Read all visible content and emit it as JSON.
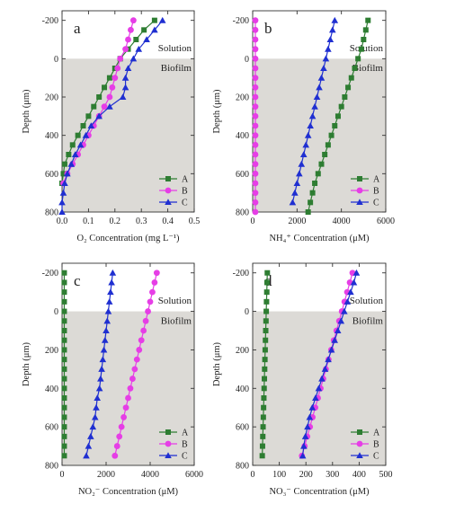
{
  "colors": {
    "A": "#2e7d32",
    "B": "#e63ee6",
    "C": "#1f2fd1",
    "biofilm_fill": "#dcdad6"
  },
  "chart_data": [
    {
      "type": "line",
      "panel": "a",
      "xlabel": "O₂ Concentration (mg L⁻¹)",
      "ylabel": "Depth (μm)",
      "xlim": [
        0,
        0.5
      ],
      "ylim": [
        -250,
        800
      ],
      "xticks": [
        0,
        0.1,
        0.2,
        0.3,
        0.4,
        0.5
      ],
      "xtick_labels": [
        "0.0",
        "0.1",
        "0.2",
        "0.3",
        "0.4",
        "0.5"
      ],
      "yticks": [
        -200,
        0,
        200,
        400,
        600,
        800
      ],
      "ytick_labels": [
        "-200",
        "0",
        "200",
        "400",
        "600",
        "800"
      ],
      "y_inverted": true,
      "solution_label": "Solution",
      "biofilm_label": "Biofilm",
      "legend": "bottom-right",
      "series": [
        {
          "name": "A",
          "marker": "square",
          "x": [
            0.35,
            0.31,
            0.28,
            0.25,
            0.22,
            0.2,
            0.18,
            0.16,
            0.14,
            0.12,
            0.1,
            0.08,
            0.06,
            0.04,
            0.025,
            0.01,
            0.005,
            0.0
          ],
          "y": [
            -200,
            -150,
            -100,
            -50,
            0,
            50,
            100,
            150,
            200,
            250,
            300,
            350,
            400,
            450,
            500,
            550,
            600,
            650
          ]
        },
        {
          "name": "B",
          "marker": "circle",
          "x": [
            0.27,
            0.26,
            0.25,
            0.24,
            0.22,
            0.21,
            0.2,
            0.19,
            0.18,
            0.16,
            0.14,
            0.12,
            0.1,
            0.08,
            0.06,
            0.04,
            0.02,
            0.005
          ],
          "y": [
            -200,
            -150,
            -100,
            -50,
            0,
            50,
            100,
            150,
            200,
            250,
            300,
            350,
            400,
            450,
            500,
            550,
            600,
            650
          ]
        },
        {
          "name": "C",
          "marker": "triangle",
          "x": [
            0.38,
            0.35,
            0.32,
            0.29,
            0.27,
            0.25,
            0.24,
            0.24,
            0.23,
            0.18,
            0.14,
            0.11,
            0.09,
            0.07,
            0.05,
            0.035,
            0.02,
            0.01,
            0.005,
            0.0,
            0.0
          ],
          "y": [
            -200,
            -150,
            -100,
            -50,
            0,
            50,
            100,
            150,
            200,
            250,
            300,
            350,
            400,
            450,
            500,
            550,
            600,
            650,
            700,
            750,
            800
          ]
        }
      ]
    },
    {
      "type": "line",
      "panel": "b",
      "xlabel": "NH₄⁺ Concentration (μM)",
      "ylabel": "Depth (μm)",
      "xlim": [
        0,
        6000
      ],
      "ylim": [
        -250,
        800
      ],
      "xticks": [
        0,
        2000,
        4000,
        6000
      ],
      "xtick_labels": [
        "0",
        "2000",
        "4000",
        "6000"
      ],
      "yticks": [
        -200,
        0,
        200,
        400,
        600,
        800
      ],
      "ytick_labels": [
        "-200",
        "0",
        "200",
        "400",
        "600",
        "800"
      ],
      "y_inverted": true,
      "solution_label": "Solution",
      "biofilm_label": "Biofilm",
      "legend": "bottom-right",
      "series": [
        {
          "name": "A",
          "marker": "square",
          "x": [
            5200,
            5100,
            5000,
            4900,
            4750,
            4600,
            4450,
            4300,
            4150,
            4000,
            3850,
            3700,
            3550,
            3400,
            3250,
            3100,
            2950,
            2800,
            2700,
            2600,
            2500
          ],
          "y": [
            -200,
            -150,
            -100,
            -50,
            0,
            50,
            100,
            150,
            200,
            250,
            300,
            350,
            400,
            450,
            500,
            550,
            600,
            650,
            700,
            750,
            800
          ]
        },
        {
          "name": "B",
          "marker": "circle",
          "x": [
            120,
            120,
            120,
            120,
            120,
            120,
            120,
            120,
            120,
            120,
            120,
            120,
            120,
            120,
            120,
            120,
            120,
            120,
            120,
            120,
            120
          ],
          "y": [
            -200,
            -150,
            -100,
            -50,
            0,
            50,
            100,
            150,
            200,
            250,
            300,
            350,
            400,
            450,
            500,
            550,
            600,
            650,
            700,
            750,
            800
          ]
        },
        {
          "name": "C",
          "marker": "triangle",
          "x": [
            3700,
            3600,
            3500,
            3400,
            3300,
            3200,
            3100,
            3000,
            2900,
            2800,
            2700,
            2600,
            2500,
            2400,
            2300,
            2200,
            2100,
            2000,
            1900,
            1800
          ],
          "y": [
            -200,
            -150,
            -100,
            -50,
            0,
            50,
            100,
            150,
            200,
            250,
            300,
            350,
            400,
            450,
            500,
            550,
            600,
            650,
            700,
            750
          ]
        }
      ]
    },
    {
      "type": "line",
      "panel": "c",
      "xlabel": "NO₂⁻ Concentration (μM)",
      "ylabel": "Depth (μm)",
      "xlim": [
        0,
        6000
      ],
      "ylim": [
        -250,
        800
      ],
      "xticks": [
        0,
        2000,
        4000,
        6000
      ],
      "xtick_labels": [
        "0",
        "2000",
        "4000",
        "6000"
      ],
      "yticks": [
        -200,
        0,
        200,
        400,
        600,
        800
      ],
      "ytick_labels": [
        "-200",
        "0",
        "200",
        "400",
        "600",
        "800"
      ],
      "y_inverted": true,
      "solution_label": "Solution",
      "biofilm_label": "Biofilm",
      "legend": "bottom-right",
      "series": [
        {
          "name": "A",
          "marker": "square",
          "x": [
            100,
            100,
            100,
            100,
            100,
            100,
            100,
            100,
            100,
            100,
            100,
            100,
            100,
            100,
            100,
            100,
            100,
            100,
            100,
            100
          ],
          "y": [
            -200,
            -150,
            -100,
            -50,
            0,
            50,
            100,
            150,
            200,
            250,
            300,
            350,
            400,
            450,
            500,
            550,
            600,
            650,
            700,
            750
          ]
        },
        {
          "name": "B",
          "marker": "circle",
          "x": [
            4300,
            4200,
            4100,
            4000,
            3900,
            3800,
            3700,
            3600,
            3500,
            3400,
            3300,
            3200,
            3100,
            3000,
            2900,
            2800,
            2700,
            2600,
            2500,
            2400
          ],
          "y": [
            -200,
            -150,
            -100,
            -50,
            0,
            50,
            100,
            150,
            200,
            250,
            300,
            350,
            400,
            450,
            500,
            550,
            600,
            650,
            700,
            750
          ]
        },
        {
          "name": "C",
          "marker": "triangle",
          "x": [
            2300,
            2250,
            2200,
            2150,
            2100,
            2050,
            2000,
            1950,
            1900,
            1850,
            1800,
            1750,
            1700,
            1600,
            1550,
            1500,
            1400,
            1300,
            1200,
            1100
          ],
          "y": [
            -200,
            -150,
            -100,
            -50,
            0,
            50,
            100,
            150,
            200,
            250,
            300,
            350,
            400,
            450,
            500,
            550,
            600,
            650,
            700,
            750
          ]
        }
      ]
    },
    {
      "type": "line",
      "panel": "d",
      "xlabel": "NO₃⁻ Concentration (μM)",
      "ylabel": "Depth (μm)",
      "xlim": [
        0,
        500
      ],
      "ylim": [
        -250,
        800
      ],
      "xticks": [
        0,
        100,
        200,
        300,
        400,
        500
      ],
      "xtick_labels": [
        "0",
        "100",
        "200",
        "300",
        "400",
        "500"
      ],
      "yticks": [
        -200,
        0,
        200,
        400,
        600,
        800
      ],
      "ytick_labels": [
        "-200",
        "0",
        "200",
        "400",
        "600",
        "800"
      ],
      "y_inverted": true,
      "solution_label": "Solution",
      "biofilm_label": "Biofilm",
      "legend": "bottom-right",
      "series": [
        {
          "name": "A",
          "marker": "square",
          "x": [
            55,
            54,
            53,
            52,
            51,
            50,
            49,
            48,
            47,
            46,
            45,
            44,
            43,
            42,
            41,
            40,
            39,
            38,
            37,
            36
          ],
          "y": [
            -200,
            -150,
            -100,
            -50,
            0,
            50,
            100,
            150,
            200,
            250,
            300,
            350,
            400,
            450,
            500,
            550,
            600,
            650,
            700,
            750
          ]
        },
        {
          "name": "B",
          "marker": "circle",
          "x": [
            375,
            365,
            355,
            345,
            335,
            325,
            315,
            305,
            295,
            285,
            275,
            265,
            255,
            245,
            235,
            225,
            215,
            205,
            195,
            185
          ],
          "y": [
            -200,
            -150,
            -100,
            -50,
            0,
            50,
            100,
            150,
            200,
            250,
            300,
            350,
            400,
            450,
            500,
            550,
            600,
            650,
            700,
            750
          ]
        },
        {
          "name": "C",
          "marker": "triangle",
          "x": [
            390,
            380,
            368,
            356,
            344,
            332,
            320,
            308,
            296,
            284,
            272,
            260,
            248,
            236,
            224,
            214,
            206,
            198,
            192,
            188
          ],
          "y": [
            -200,
            -150,
            -100,
            -50,
            0,
            50,
            100,
            150,
            200,
            250,
            300,
            350,
            400,
            450,
            500,
            550,
            600,
            650,
            700,
            750
          ]
        }
      ]
    }
  ]
}
